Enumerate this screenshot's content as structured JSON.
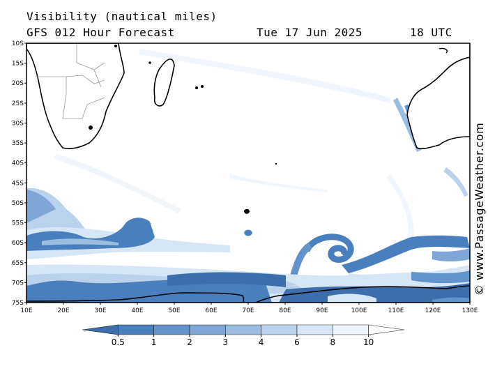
{
  "header": {
    "line1": "Visibility (nautical miles)",
    "model": "GFS 012 Hour Forecast",
    "date": "Tue 17 Jun 2025",
    "time": "18 UTC"
  },
  "credit": "© www.PassageWeather.com",
  "map": {
    "lat_labels": [
      "10S",
      "15S",
      "20S",
      "25S",
      "30S",
      "35S",
      "40S",
      "45S",
      "50S",
      "55S",
      "60S",
      "65S",
      "70S",
      "75S"
    ],
    "lon_labels": [
      "10E",
      "20E",
      "30E",
      "40E",
      "50E",
      "60E",
      "70E",
      "80E",
      "90E",
      "100E",
      "110E",
      "120E",
      "130E"
    ],
    "lon_range": [
      10,
      130
    ],
    "lat_range": [
      -10,
      -75
    ],
    "land_color": "#ffffff",
    "coast_color": "#000000",
    "border_color": "#999999"
  },
  "colorbar": {
    "labels": [
      "0.5",
      "1",
      "2",
      "3",
      "4",
      "6",
      "8",
      "10"
    ],
    "colors": [
      "#3b6eab",
      "#4a7fbd",
      "#6293cb",
      "#7ea6d6",
      "#9bbde2",
      "#bad2ec",
      "#d7e6f5",
      "#eef5fc",
      "#ffffff"
    ]
  }
}
